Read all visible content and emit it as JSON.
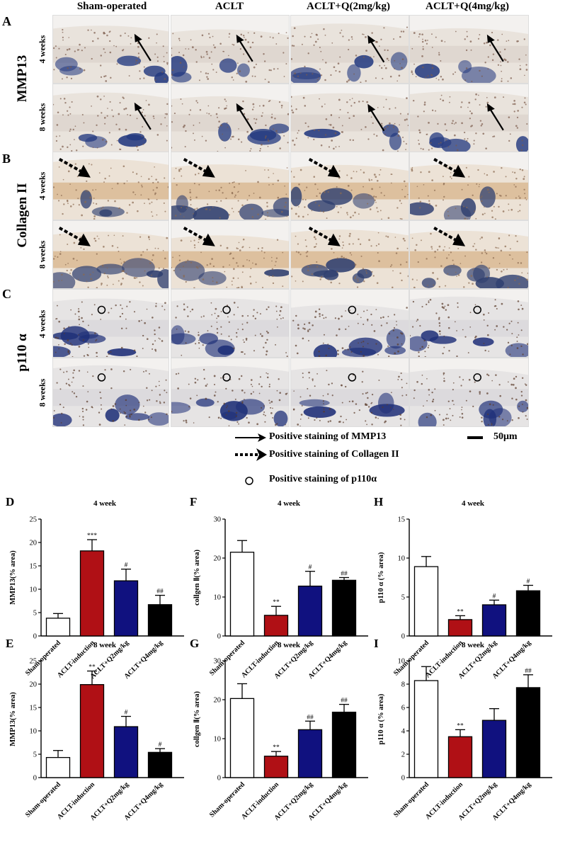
{
  "column_headers": [
    "Sham-operated",
    "ACLT",
    "ACLT+Q(2mg/kg)",
    "ACLT+Q(4mg/kg)"
  ],
  "panels": {
    "A": {
      "letter": "A",
      "row_label": "MMP13",
      "weeks": [
        "4 weeks",
        "8 weeks"
      ],
      "marker": "solid-arrow"
    },
    "B": {
      "letter": "B",
      "row_label": "Collagen II",
      "weeks": [
        "4 weeks",
        "8 weeks"
      ],
      "marker": "dashed-arrow"
    },
    "C": {
      "letter": "C",
      "row_label": "p110 α",
      "weeks": [
        "4 weeks",
        "8 weeks"
      ],
      "marker": "circle"
    }
  },
  "legend": {
    "mmp13": "Positive staining of MMP13",
    "collagen": "Positive staining of Collagen II",
    "p110": "Positive staining of p110α",
    "scale": "50μm"
  },
  "colors": {
    "sham": "#ffffff",
    "aclt": "#b01015",
    "q2": "#10117f",
    "q4": "#000000"
  },
  "chart_data": [
    {
      "letter": "D",
      "type": "bar",
      "title": "4 week",
      "ylabel": "MMP13(% area)",
      "ylim": [
        0,
        25
      ],
      "ticks": [
        0,
        5,
        10,
        15,
        20,
        25
      ],
      "categories": [
        "Sham-operated",
        "ACLT-induction",
        "ACLT+Q2mg/kg",
        "ACLT+Q4mg/kg"
      ],
      "values": [
        3.8,
        18.2,
        11.8,
        6.7
      ],
      "errors": [
        1.0,
        2.4,
        2.5,
        2.0
      ],
      "annotations": [
        "",
        "***",
        "#",
        "##"
      ]
    },
    {
      "letter": "F",
      "type": "bar",
      "title": "4 week",
      "ylabel": "collgen Ⅱ(% area)",
      "ylim": [
        0,
        30
      ],
      "ticks": [
        0,
        10,
        20,
        30
      ],
      "categories": [
        "Sham-operated",
        "ACLT-induction",
        "ACLT+Q2mg/kg",
        "ACLT+Q4mg/kg"
      ],
      "values": [
        21.5,
        5.3,
        12.8,
        14.3
      ],
      "errors": [
        3.0,
        2.3,
        3.8,
        0.7
      ],
      "annotations": [
        "",
        "**",
        "#",
        "##"
      ]
    },
    {
      "letter": "H",
      "type": "bar",
      "title": "4 week",
      "ylabel": "p110 α (% area)",
      "ylim": [
        0,
        15
      ],
      "ticks": [
        0,
        5,
        10,
        15
      ],
      "categories": [
        "Sham-operated",
        "ACLT-induction",
        "ACLT+Q2mg/kg",
        "ACLT+Q4mg/kg"
      ],
      "values": [
        8.9,
        2.1,
        4.0,
        5.8
      ],
      "errors": [
        1.3,
        0.5,
        0.6,
        0.7
      ],
      "annotations": [
        "",
        "**",
        "#",
        "#"
      ]
    },
    {
      "letter": "E",
      "type": "bar",
      "title": "8 week",
      "ylabel": "MMP13(% area)",
      "ylim": [
        0,
        25
      ],
      "ticks": [
        0,
        5,
        10,
        15,
        20,
        25
      ],
      "categories": [
        "Sham-operated",
        "ACLT-induction",
        "ACLT+Q2mg/kg",
        "ACLT+Q4mg/kg"
      ],
      "values": [
        4.3,
        19.9,
        10.9,
        5.4
      ],
      "errors": [
        1.5,
        2.9,
        2.2,
        0.8
      ],
      "annotations": [
        "",
        "**",
        "#",
        "#"
      ]
    },
    {
      "letter": "G",
      "type": "bar",
      "title": "8 week",
      "ylabel": "collgen Ⅱ(% area)",
      "ylim": [
        0,
        30
      ],
      "ticks": [
        0,
        10,
        20,
        30
      ],
      "categories": [
        "Sham-operated",
        "ACLT-induction",
        "ACLT+Q2mg/kg",
        "ACLT+Q4mg/kg"
      ],
      "values": [
        20.3,
        5.5,
        12.3,
        16.8
      ],
      "errors": [
        3.8,
        1.2,
        2.2,
        2.0
      ],
      "annotations": [
        "",
        "**",
        "##",
        "##"
      ]
    },
    {
      "letter": "I",
      "type": "bar",
      "title": "8 week",
      "ylabel": "p110 α (% area)",
      "ylim": [
        0,
        10
      ],
      "ticks": [
        0,
        2,
        4,
        6,
        8,
        10
      ],
      "categories": [
        "Sham-operated",
        "ACLT-induction",
        "ACLT+Q2mg/kg",
        "ACLT+Q4mg/kg"
      ],
      "values": [
        8.3,
        3.5,
        4.9,
        7.7
      ],
      "errors": [
        1.2,
        0.6,
        1.0,
        1.1
      ],
      "annotations": [
        "",
        "**",
        "",
        "##"
      ]
    }
  ]
}
